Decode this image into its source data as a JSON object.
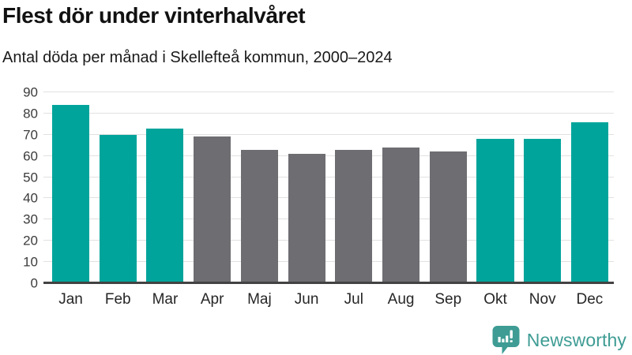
{
  "header": {
    "title": "Flest dör under vinterhalvåret",
    "subtitle": "Antal döda per månad i Skellefteå kommun, 2000–2024"
  },
  "chart_data": {
    "type": "bar",
    "title": "Flest dör under vinterhalvåret",
    "subtitle": "Antal döda per månad i Skellefteå kommun, 2000–2024",
    "categories": [
      "Jan",
      "Feb",
      "Mar",
      "Apr",
      "Maj",
      "Jun",
      "Jul",
      "Aug",
      "Sep",
      "Okt",
      "Nov",
      "Dec"
    ],
    "values": [
      84,
      70,
      73,
      69,
      63,
      61,
      63,
      64,
      62,
      68,
      68,
      76
    ],
    "bar_color_keys": [
      "highlight",
      "highlight",
      "highlight",
      "base",
      "base",
      "base",
      "base",
      "base",
      "base",
      "highlight",
      "highlight",
      "highlight"
    ],
    "palette": {
      "highlight": "#00a49b",
      "base": "#6d6d72"
    },
    "xlabel": "",
    "ylabel": "",
    "ylim": [
      0,
      90
    ],
    "yticks": [
      0,
      10,
      20,
      30,
      40,
      50,
      60,
      70,
      80,
      90
    ],
    "grid": true,
    "legend": false,
    "gridline_color": "#e1e1e1",
    "axis_line_color": "#424242"
  },
  "footer": {
    "brand": "Newsworthy",
    "brand_color": "#3e9c94",
    "logo_icon": "newsworthy-speech-bubble-bar-chart"
  }
}
